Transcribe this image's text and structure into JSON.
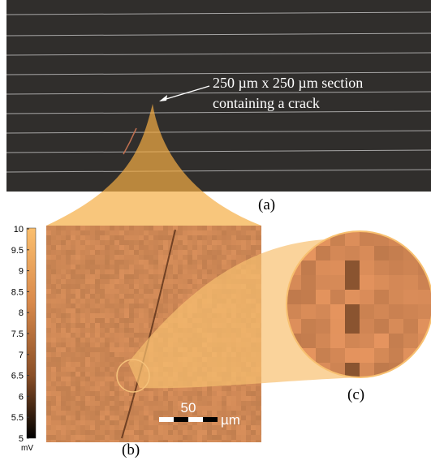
{
  "panel_a": {
    "annotation": [
      "250 µm x 250 µm section",
      "containing a crack"
    ],
    "label": "(a)"
  },
  "panel_b": {
    "label": "(b)",
    "colorbar": {
      "ticks": [
        10,
        9.5,
        9,
        8.5,
        8,
        7.5,
        7,
        6.5,
        6,
        5.5,
        5
      ],
      "unit": "mV"
    },
    "scale_bar": {
      "value": 50,
      "unit": "µm"
    }
  },
  "panel_c": {
    "label": "(c)"
  }
}
